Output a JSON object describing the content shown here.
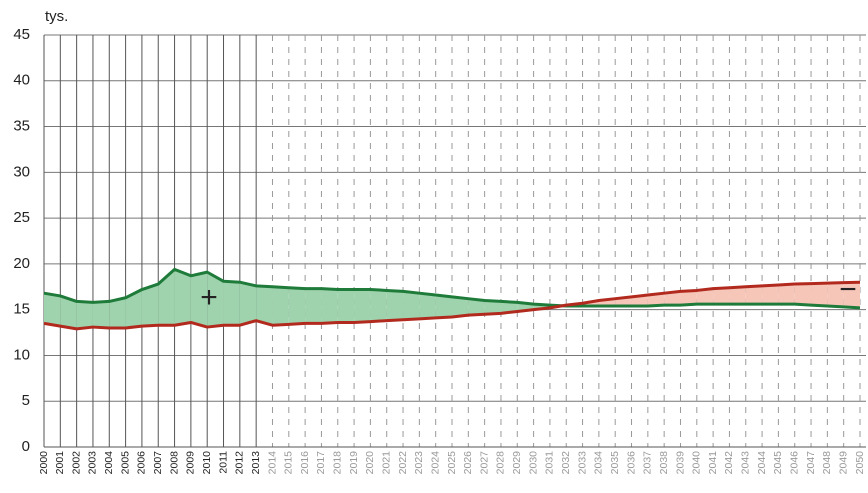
{
  "chart_data": {
    "type": "line",
    "ylabel": "tys.",
    "categories": [
      "2000",
      "2001",
      "2002",
      "2003",
      "2004",
      "2005",
      "2006",
      "2007",
      "2008",
      "2009",
      "2010",
      "2011",
      "2012",
      "2013",
      "2014",
      "2015",
      "2016",
      "2017",
      "2018",
      "2019",
      "2020",
      "2021",
      "2022",
      "2023",
      "2024",
      "2025",
      "2026",
      "2027",
      "2028",
      "2029",
      "2030",
      "2031",
      "2032",
      "2033",
      "2034",
      "2035",
      "2036",
      "2037",
      "2038",
      "2039",
      "2040",
      "2041",
      "2042",
      "2043",
      "2044",
      "2045",
      "2046",
      "2047",
      "2048",
      "2049",
      "2050"
    ],
    "series": [
      {
        "color": "#1e7b3a",
        "fill": "#9fd3ad",
        "values": [
          16.8,
          16.5,
          15.9,
          15.8,
          15.9,
          16.3,
          17.2,
          17.8,
          19.4,
          18.7,
          19.1,
          18.1,
          18.0,
          17.6,
          17.5,
          17.4,
          17.3,
          17.3,
          17.2,
          17.2,
          17.2,
          17.1,
          17.0,
          16.8,
          16.6,
          16.4,
          16.2,
          16.0,
          15.9,
          15.8,
          15.6,
          15.5,
          15.4,
          15.4,
          15.4,
          15.4,
          15.4,
          15.4,
          15.5,
          15.5,
          15.6,
          15.6,
          15.6,
          15.6,
          15.6,
          15.6,
          15.6,
          15.5,
          15.4,
          15.3,
          15.2
        ]
      },
      {
        "color": "#b22a1e",
        "fill": "#f6c6b9",
        "values": [
          13.5,
          13.2,
          12.9,
          13.1,
          13.0,
          13.0,
          13.2,
          13.3,
          13.3,
          13.6,
          13.1,
          13.3,
          13.3,
          13.8,
          13.3,
          13.4,
          13.5,
          13.5,
          13.6,
          13.6,
          13.7,
          13.8,
          13.9,
          14.0,
          14.1,
          14.2,
          14.4,
          14.5,
          14.6,
          14.8,
          15.0,
          15.2,
          15.5,
          15.7,
          16.0,
          16.2,
          16.4,
          16.6,
          16.8,
          17.0,
          17.1,
          17.3,
          17.4,
          17.5,
          17.6,
          17.7,
          17.8,
          17.85,
          17.9,
          17.95,
          18.0
        ]
      }
    ],
    "annotations": [
      "+",
      "−"
    ],
    "forecast_from_index": 14,
    "ylim": [
      0,
      45
    ],
    "yticks": [
      0,
      5,
      10,
      15,
      20,
      25,
      30,
      35,
      40,
      45
    ],
    "grid": true
  }
}
